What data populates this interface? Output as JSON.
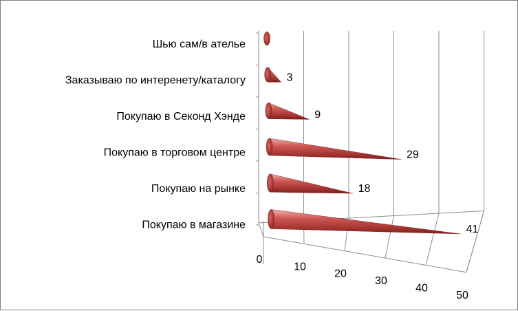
{
  "chart_data": {
    "type": "bar",
    "categories": [
      "Шью сам/в ателье",
      "Заказываю по интеренету/каталогу",
      "Покупаю в Секонд Хэнде",
      "Покупаю в торговом центре",
      "Покупаю на рынке",
      "Покупаю в магазине"
    ],
    "values": [
      0,
      3,
      9,
      29,
      18,
      41
    ],
    "value_labels": [
      "",
      "3",
      "9",
      "29",
      "18",
      "41"
    ],
    "xlim": [
      0,
      50
    ],
    "x_ticks": [
      "0",
      "10",
      "20",
      "30",
      "40",
      "50"
    ],
    "orientation": "horizontal",
    "bar_shape": "cone",
    "three_d": true,
    "grid": true,
    "legend": "none",
    "colors": {
      "cone": "#c0504d",
      "cone_light": "#f2b6b4",
      "cone_dark": "#7a1e1c",
      "grid": "#8c8c8c"
    }
  }
}
